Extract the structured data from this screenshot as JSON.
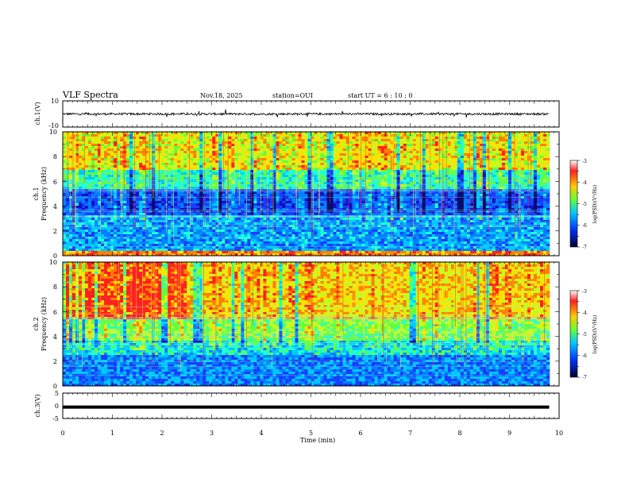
{
  "header": {
    "title": "VLF Spectra",
    "date": "Nov.18, 2025",
    "station": "station=OUI",
    "start": "start  UT =   6  : 10 : 0"
  },
  "chart_data": [
    {
      "type": "line",
      "panel": "ch1-waveform",
      "ylabel": "ch.1(V)",
      "ylim": [
        -10,
        10
      ],
      "yticks": [
        "10",
        "-10"
      ],
      "xlim": [
        0,
        10
      ],
      "baseline": 0,
      "data_end_x": 9.8
    },
    {
      "type": "heatmap",
      "panel": "ch1-spectrogram",
      "ylabel_line1": "ch.1",
      "ylabel_line2": "Frequency (kHz)",
      "ylim": [
        0,
        10
      ],
      "yticks": [
        "0",
        "2",
        "4",
        "6",
        "8",
        "10"
      ],
      "xlim": [
        0,
        10
      ],
      "data_end_x": 9.8,
      "colorbar": {
        "label": "log(PSD)(V²/Hz)",
        "range": [
          -7,
          -3
        ],
        "ticks": [
          "-3",
          "-4",
          "-5",
          "-6",
          "-7"
        ]
      }
    },
    {
      "type": "heatmap",
      "panel": "ch2-spectrogram",
      "ylabel_line1": "ch.2",
      "ylabel_line2": "Frequency (kHz)",
      "ylim": [
        0,
        10
      ],
      "yticks": [
        "0",
        "2",
        "4",
        "6",
        "8",
        "10"
      ],
      "xlim": [
        0,
        10
      ],
      "data_end_x": 9.8,
      "colorbar": {
        "label": "log(PSD)(V²/Hz)",
        "range": [
          -7,
          -3
        ],
        "ticks": [
          "-3",
          "-4",
          "-5",
          "-6",
          "-7"
        ]
      }
    },
    {
      "type": "line",
      "panel": "ch3-waveform",
      "ylabel": "ch.3(V)",
      "ylim": [
        -5,
        5
      ],
      "yticks": [
        "5",
        "0",
        "-5"
      ],
      "xlim": [
        0,
        10
      ],
      "value": -0.5,
      "data_end_x": 9.8,
      "xlabel": "Time (min)",
      "xticks": [
        "0",
        "1",
        "2",
        "3",
        "4",
        "5",
        "6",
        "7",
        "8",
        "9",
        "10"
      ]
    }
  ]
}
